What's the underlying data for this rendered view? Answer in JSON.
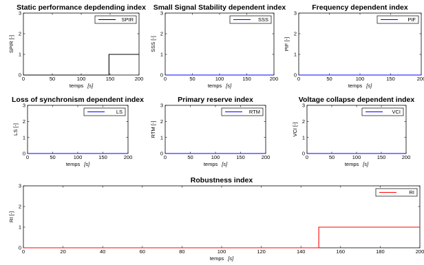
{
  "chart_data": [
    {
      "type": "line",
      "title": "Static performance depdending index",
      "xlabel": "temps",
      "xunit": "[s]",
      "ylabel": "SPIR [-]",
      "xlim": [
        0,
        200
      ],
      "ylim": [
        0,
        3
      ],
      "xticks": [
        0,
        50,
        100,
        150,
        200
      ],
      "yticks": [
        0,
        1,
        2,
        3
      ],
      "legend_position": "top-right",
      "series": [
        {
          "name": "SPIR",
          "color": "#000000",
          "x": [
            0,
            148,
            148,
            200
          ],
          "y": [
            0,
            0,
            1,
            1
          ]
        }
      ]
    },
    {
      "type": "line",
      "title": "Small Signal Stability dependent index",
      "xlabel": "temps",
      "xunit": "[s]",
      "ylabel": "SSS [-]",
      "xlim": [
        0,
        200
      ],
      "ylim": [
        0,
        3
      ],
      "xticks": [
        0,
        50,
        100,
        150,
        200
      ],
      "yticks": [
        0,
        1,
        2,
        3
      ],
      "legend_position": "top-right",
      "series": [
        {
          "name": "SSS",
          "color": "#0000ff",
          "x": [
            0,
            200
          ],
          "y": [
            0,
            0
          ]
        }
      ]
    },
    {
      "type": "line",
      "title": "Frequency dependent index",
      "xlabel": "temps",
      "xunit": "[s]",
      "ylabel": "PIF [-]",
      "xlim": [
        0,
        200
      ],
      "ylim": [
        0,
        3
      ],
      "xticks": [
        0,
        50,
        100,
        150,
        200
      ],
      "yticks": [
        0,
        1,
        2,
        3
      ],
      "legend_position": "top-right",
      "series": [
        {
          "name": "PIF",
          "color": "#0000ff",
          "x": [
            0,
            200
          ],
          "y": [
            0,
            0
          ]
        }
      ]
    },
    {
      "type": "line",
      "title": "Loss of synchronism dependent index",
      "xlabel": "temps",
      "xunit": "[s]",
      "ylabel": "LS [-]",
      "xlim": [
        0,
        200
      ],
      "ylim": [
        0,
        3
      ],
      "xticks": [
        0,
        50,
        100,
        150,
        200
      ],
      "yticks": [
        0,
        1,
        2,
        3
      ],
      "legend_position": "top-right",
      "series": [
        {
          "name": "LS",
          "color": "#0000ff",
          "x": [
            0,
            200
          ],
          "y": [
            0,
            0
          ]
        }
      ]
    },
    {
      "type": "line",
      "title": "Primary reserve index",
      "xlabel": "temps",
      "xunit": "[s]",
      "ylabel": "RTM [-]",
      "xlim": [
        0,
        200
      ],
      "ylim": [
        0,
        3
      ],
      "xticks": [
        0,
        50,
        100,
        150,
        200
      ],
      "yticks": [
        0,
        1,
        2,
        3
      ],
      "legend_position": "top-right",
      "series": [
        {
          "name": "RTM",
          "color": "#0000ff",
          "x": [
            0,
            200
          ],
          "y": [
            0,
            0
          ]
        }
      ]
    },
    {
      "type": "line",
      "title": "Voltage collapse dependent index",
      "xlabel": "temps",
      "xunit": "[s]",
      "ylabel": "VCI [-]",
      "xlim": [
        0,
        200
      ],
      "ylim": [
        0,
        3
      ],
      "xticks": [
        0,
        50,
        100,
        150,
        200
      ],
      "yticks": [
        0,
        1,
        2,
        3
      ],
      "legend_position": "top-right",
      "series": [
        {
          "name": "VCI",
          "color": "#0000ff",
          "x": [
            0,
            200
          ],
          "y": [
            0,
            0
          ]
        }
      ]
    },
    {
      "type": "line",
      "title": "Robustness index",
      "xlabel": "temps",
      "xunit": "[s]",
      "ylabel": "RI [-]",
      "xlim": [
        0,
        200
      ],
      "ylim": [
        0,
        3
      ],
      "xticks": [
        0,
        20,
        40,
        60,
        80,
        100,
        120,
        140,
        160,
        180,
        200
      ],
      "yticks": [
        0,
        1,
        2,
        3
      ],
      "legend_position": "top-right",
      "series": [
        {
          "name": "RI",
          "color": "#ff0000",
          "x": [
            0,
            149,
            149,
            200
          ],
          "y": [
            0,
            0,
            1,
            1
          ]
        }
      ]
    }
  ]
}
